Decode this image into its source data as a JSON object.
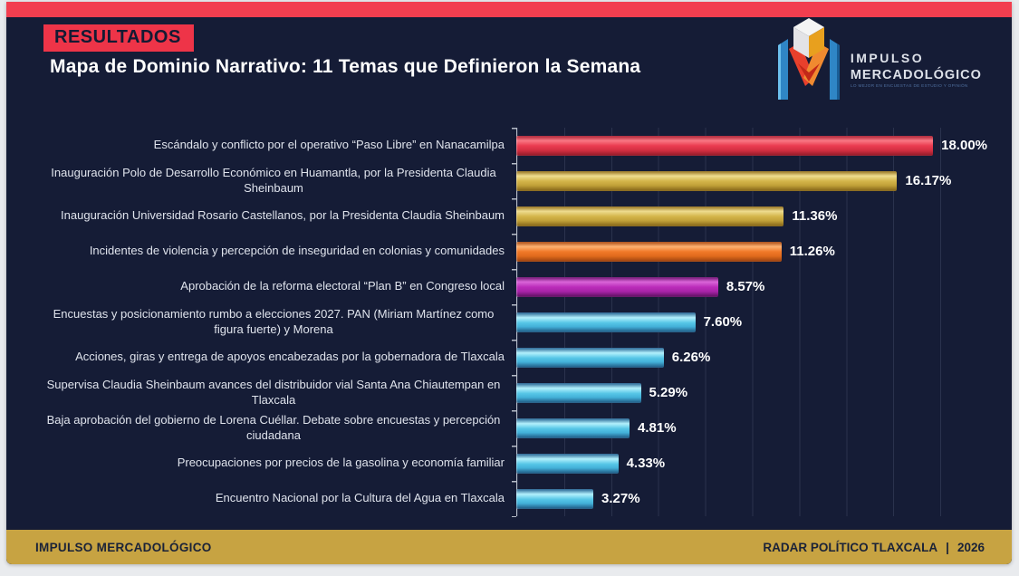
{
  "header": {
    "badge": "RESULTADOS",
    "title": "Mapa de Dominio Narrativo: 11 Temas que Definieron la Semana"
  },
  "logo": {
    "line1": "IMPULSO",
    "line2": "MERCADOLÓGICO",
    "tagline": "LO MEJOR EN ENCUESTAS DE ESTUDIO Y OPINIÓN"
  },
  "footer": {
    "brand": "IMPULSO MERCADOLÓGICO",
    "program": "RADAR POLÍTICO TLAXCALA",
    "separator": "|",
    "year": "2026"
  },
  "colors": {
    "slide_bg": "#151c36",
    "top_strip_red": "#f23e4f",
    "badge_red": "#ee3448",
    "footer_gold": "#c7a342",
    "bar_red": "#e73b4e",
    "bar_gold": "#d4b54a",
    "bar_orange": "#f07828",
    "bar_magenta": "#bb2cba",
    "bar_cyan": "#56c6e6",
    "axis_gray": "#b6bcc8"
  },
  "chart_data": {
    "type": "bar",
    "orientation": "horizontal",
    "title": "Mapa de Dominio Narrativo: 11 Temas que Definieron la Semana",
    "xlim": [
      0,
      20
    ],
    "gridline_step_pct": 2,
    "grid": true,
    "legend": "none",
    "categories": [
      "Escándalo y conflicto por el operativo “Paso Libre” en Nanacamilpa",
      "Inauguración Polo de Desarrollo Económico en Huamantla, por la Presidenta Claudia Sheinbaum",
      "Inauguración Universidad Rosario Castellanos, por la Presidenta Claudia Sheinbaum",
      "Incidentes de violencia y percepción de inseguridad en colonias y comunidades",
      "Aprobación de la reforma electoral “Plan B” en Congreso local",
      "Encuestas y posicionamiento rumbo a elecciones 2027.  PAN (Miriam Martínez como figura fuerte) y Morena",
      "Acciones, giras y entrega de apoyos encabezadas por la gobernadora de Tlaxcala",
      "Supervisa Claudia Sheinbaum avances del distribuidor vial Santa Ana Chiautempan en Tlaxcala",
      "Baja aprobación del gobierno de Lorena Cuéllar.  Debate sobre encuestas y percepción ciudadana",
      "Preocupaciones por precios de la gasolina y economía familiar",
      "Encuentro Nacional por la Cultura del Agua en Tlaxcala"
    ],
    "values": [
      18.0,
      16.17,
      11.36,
      11.26,
      8.57,
      7.6,
      6.26,
      5.29,
      4.81,
      4.33,
      3.27
    ],
    "value_labels": [
      "18.00%",
      "16.17%",
      "11.36%",
      "11.26%",
      "8.57%",
      "7.60%",
      "6.26%",
      "5.29%",
      "4.81%",
      "4.33%",
      "3.27%"
    ],
    "bar_color_names": [
      "red",
      "gold",
      "gold",
      "orange",
      "magenta",
      "cyan",
      "cyan",
      "cyan",
      "cyan",
      "cyan",
      "cyan"
    ]
  }
}
